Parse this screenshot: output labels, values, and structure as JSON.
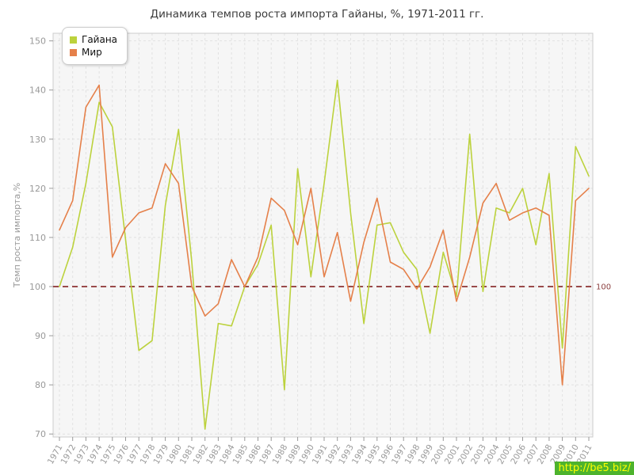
{
  "title": "Динамика темпов роста импорта Гайаны, %, 1971-2011 гг.",
  "watermark": "http://be5.biz/",
  "chart_data": {
    "type": "line",
    "title": "Динамика темпов роста импорта Гайаны, %, 1971-2011 гг.",
    "xlabel": "",
    "ylabel": "Темп роста импорта,%",
    "ylim": [
      70,
      150
    ],
    "yticks": [
      70,
      80,
      90,
      100,
      110,
      120,
      130,
      140,
      150
    ],
    "grid": true,
    "legend_position": "top-left",
    "reference_line": {
      "value": 100,
      "label": "100",
      "color": "#9a4a4a",
      "style": "dashed"
    },
    "x": [
      1971,
      1972,
      1973,
      1974,
      1975,
      1976,
      1977,
      1978,
      1979,
      1980,
      1981,
      1982,
      1983,
      1984,
      1985,
      1986,
      1987,
      1988,
      1989,
      1990,
      1991,
      1992,
      1993,
      1994,
      1995,
      1996,
      1997,
      1998,
      1999,
      2000,
      2001,
      2002,
      2003,
      2004,
      2005,
      2006,
      2007,
      2008,
      2009,
      2010,
      2011
    ],
    "series": [
      {
        "name": "Гайана",
        "color": "#bcd23d",
        "values": [
          100,
          108,
          121,
          137.5,
          132.5,
          109.5,
          87,
          89,
          116.5,
          132,
          105,
          71,
          92.5,
          92,
          100,
          104.5,
          112.5,
          79,
          124,
          102,
          121,
          142,
          115,
          92.5,
          112.5,
          113,
          107,
          103.5,
          90.5,
          107,
          98,
          131,
          99,
          116,
          115,
          120,
          108.5,
          123,
          87.5,
          128.5,
          122.5
        ]
      },
      {
        "name": "Мир",
        "color": "#e5804a",
        "values": [
          111.5,
          117.5,
          136.5,
          141,
          106,
          112,
          115,
          116,
          125,
          121,
          100,
          94,
          96.5,
          105.5,
          100,
          106,
          118,
          115.5,
          108.5,
          120,
          102,
          111,
          97,
          109,
          118,
          105,
          103.5,
          99.5,
          104,
          111.5,
          97,
          106,
          117,
          121,
          113.5,
          115,
          116,
          114.5,
          80,
          117.5,
          120
        ]
      }
    ],
    "style": {
      "plot_bg": "#f6f6f6",
      "grid_color": "#e1e1e1",
      "border_color": "#cccccc",
      "tick_color": "#999999",
      "tick_label_color": "#999999",
      "title_color": "#3b3b3b",
      "ref_label_color": "#8b4040"
    }
  }
}
